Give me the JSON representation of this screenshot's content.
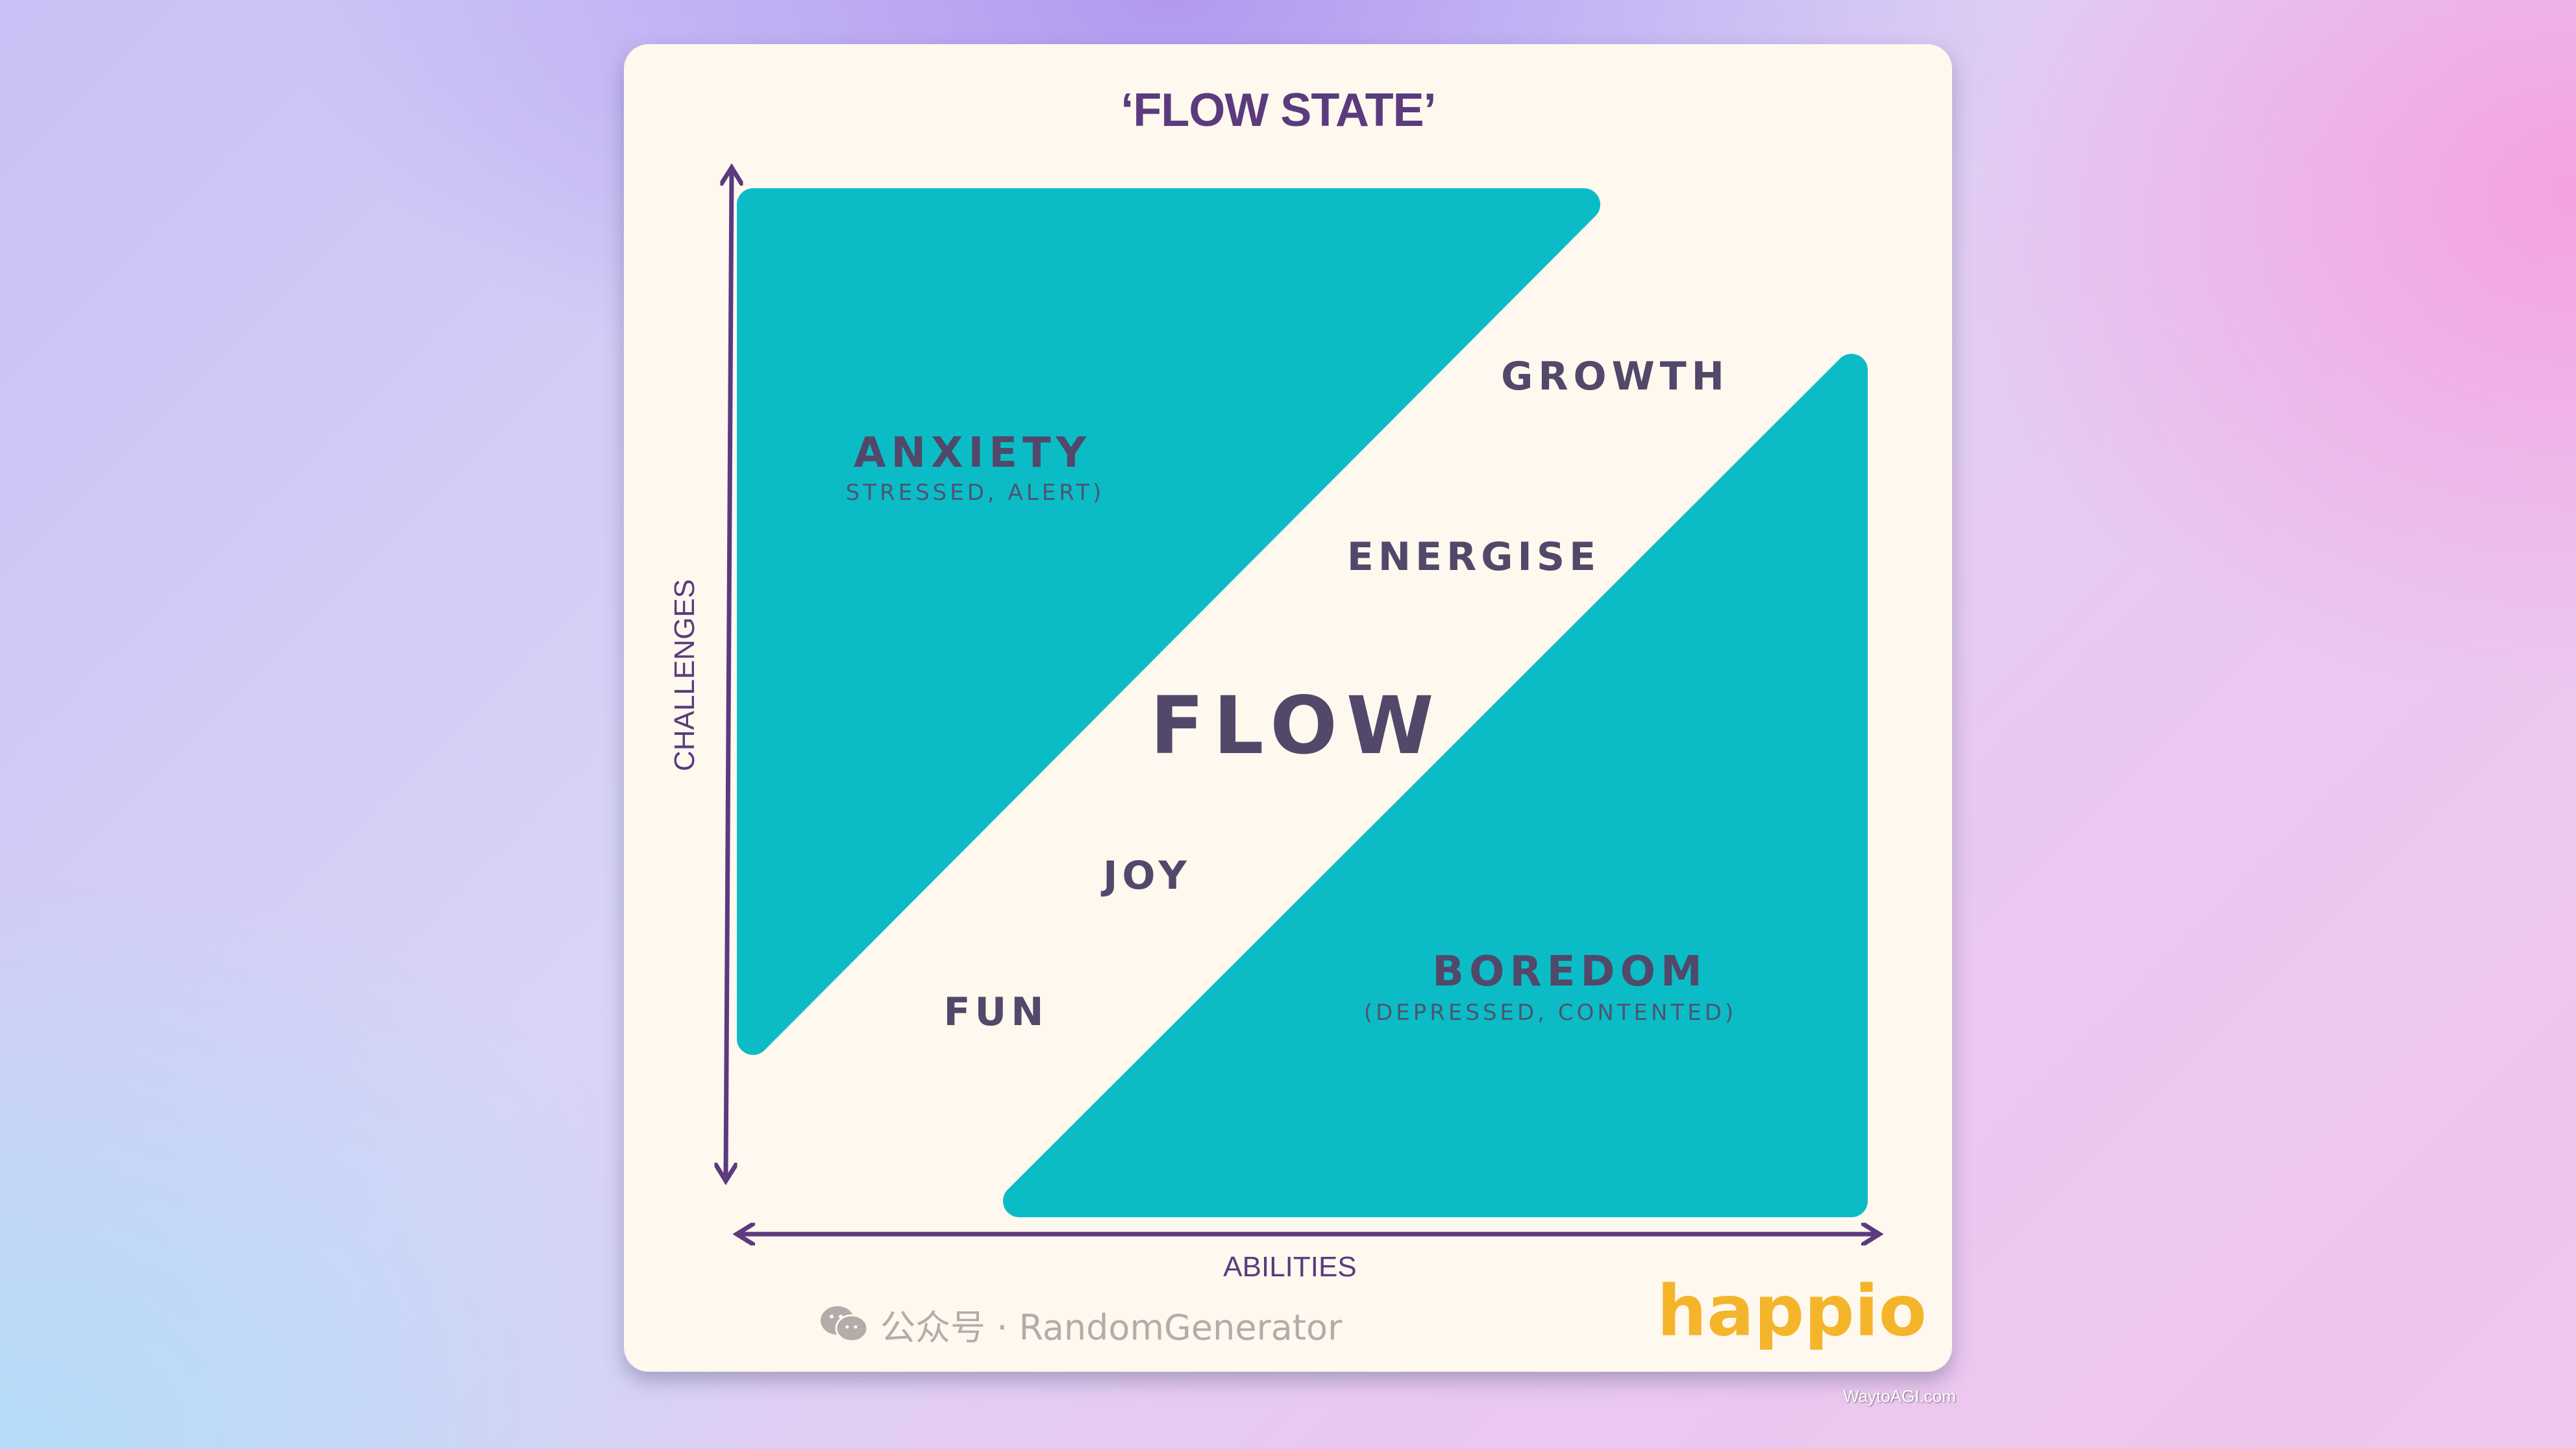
{
  "title": "‘FLOW STATE’",
  "axes": {
    "y_label": "CHALLENGES",
    "x_label": "ABILITIES"
  },
  "regions": {
    "anxiety": {
      "label": "ANXIETY",
      "sub": "STRESSED, ALERT)"
    },
    "boredom": {
      "label": "BOREDOM",
      "sub": "(DEPRESSED, CONTENTED)"
    },
    "flow": {
      "label": "FLOW"
    },
    "growth": "GROWTH",
    "energise": "ENERGISE",
    "joy": "JOY",
    "fun": "FUN"
  },
  "watermarks": {
    "wechat": "公众号 · RandomGenerator",
    "brand": "happio",
    "site": "WaytoAGI.com"
  },
  "colors": {
    "teal": "#0bbcc6",
    "purple": "#5b3a7e",
    "brand": "#f4b52a",
    "card": "#fff8ee"
  }
}
